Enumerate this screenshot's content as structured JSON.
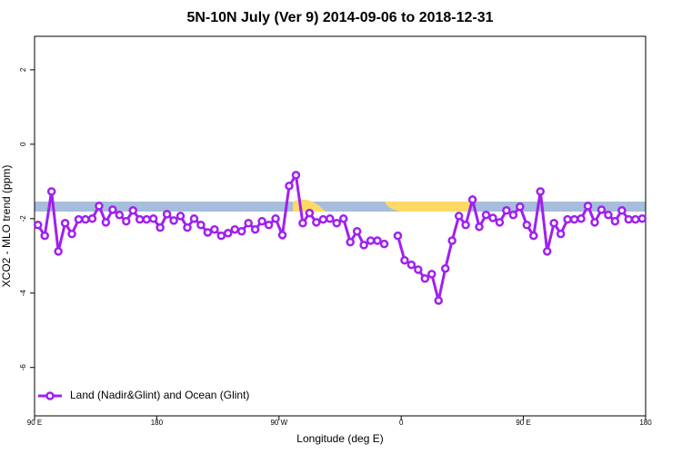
{
  "chart_data": {
    "type": "line",
    "title": "5N-10N July (Ver 9)   2014-09-06 to 2018-12-31",
    "x_label": "Longitude (deg E)",
    "y_label": "XCO2 - MLO trend (ppm)",
    "x": [
      -267.5,
      -262.5,
      -257.5,
      -252.5,
      -247.5,
      -242.5,
      -237.5,
      -232.5,
      -227.5,
      -222.5,
      -217.5,
      -212.5,
      -207.5,
      -202.5,
      -197.5,
      -192.5,
      -187.5,
      -182.5,
      -177.5,
      -172.5,
      -167.5,
      -162.5,
      -157.5,
      -152.5,
      -147.5,
      -142.5,
      -137.5,
      -132.5,
      -127.5,
      -122.5,
      -117.5,
      -112.5,
      -107.5,
      -102.5,
      -97.5,
      -92.5,
      -87.5,
      -82.5,
      -77.5,
      -72.5,
      -67.5,
      -62.5,
      -57.5,
      -52.5,
      -47.5,
      -42.5,
      -37.5,
      -32.5,
      -27.5,
      -22.5,
      -17.5,
      -12.5,
      -7.5,
      -2.5,
      2.5,
      7.5,
      12.5,
      17.5,
      22.5,
      27.5,
      32.5,
      37.5,
      42.5,
      47.5,
      52.5,
      57.5,
      62.5,
      67.5,
      72.5,
      77.5,
      82.5,
      87.5,
      92.5,
      97.5,
      102.5,
      107.5,
      112.5,
      117.5,
      122.5,
      127.5,
      132.5,
      137.5,
      142.5,
      147.5,
      152.5,
      157.5,
      162.5,
      167.5,
      172.5,
      177.5
    ],
    "series": [
      {
        "name": "Land (Nadir&Glint) and Ocean (Glint)",
        "color": "#a020f0",
        "values": [
          -2.17,
          -2.46,
          -1.27,
          -2.88,
          -2.12,
          -2.41,
          -2.02,
          -2.02,
          -2.0,
          -1.66,
          -2.1,
          -1.76,
          -1.9,
          -2.07,
          -1.78,
          -2.02,
          -2.02,
          -2.0,
          -2.24,
          -1.88,
          -2.05,
          -1.93,
          -2.24,
          -2.0,
          -2.17,
          -2.37,
          -2.29,
          -2.46,
          -2.39,
          -2.29,
          -2.34,
          -2.12,
          -2.29,
          -2.07,
          -2.17,
          -2.0,
          -2.44,
          -1.12,
          -0.83,
          -2.12,
          -1.85,
          -2.1,
          -2.02,
          -2.0,
          -2.12,
          -2.0,
          -2.63,
          -2.34,
          -2.71,
          -2.59,
          -2.59,
          -2.68,
          null,
          -2.46,
          -3.12,
          -3.24,
          -3.37,
          -3.61,
          -3.49,
          -4.2,
          -3.34,
          -2.59,
          -1.93,
          -2.17,
          -1.49,
          -2.22,
          -1.9,
          -1.98,
          -2.1,
          -1.78,
          -1.9,
          -1.68,
          -2.17,
          -2.46,
          -1.27,
          -2.88,
          -2.12,
          -2.41,
          -2.02,
          -2.02,
          -2.0,
          -1.66,
          -2.1,
          -1.76,
          -1.9,
          -2.07,
          -1.78,
          -2.02,
          -2.02,
          -2.0
        ]
      }
    ],
    "xlim": [
      -270,
      180
    ],
    "xticks": [
      {
        "value": -270,
        "label": "90 E"
      },
      {
        "value": -180,
        "label": "180"
      },
      {
        "value": -90,
        "label": "90 W"
      },
      0,
      {
        "value": 90,
        "label": "90 E"
      },
      {
        "value": 180,
        "label": "180"
      }
    ],
    "ylim": [
      -7.3,
      2.9
    ],
    "yticks": [
      -6,
      -4,
      -2,
      0,
      2
    ],
    "legend": "bottom-left"
  }
}
